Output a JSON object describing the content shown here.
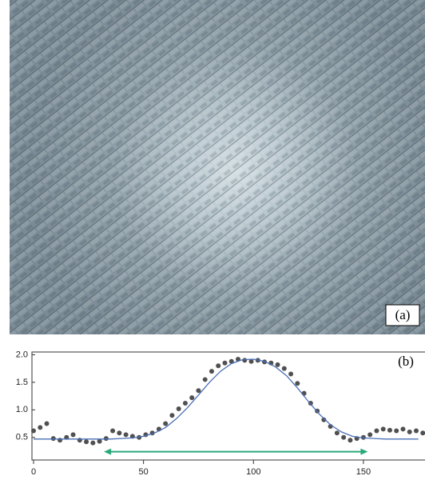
{
  "image_panel": {
    "label": "(a)"
  },
  "chart_data": {
    "type": "scatter",
    "panel_label": "(b)",
    "xlim": [
      0,
      178
    ],
    "ylim": [
      0.09,
      2.05
    ],
    "xticks": [
      0,
      50,
      100,
      150
    ],
    "yticks": [
      {
        "value": 2,
        "label": "2.0"
      },
      {
        "value": 1.5,
        "label": "1.5"
      },
      {
        "value": 1,
        "label": "1.0"
      },
      {
        "value": 0.5,
        "label": "0.5"
      }
    ],
    "series": [
      {
        "type": "scatter",
        "color": "#505050",
        "x": [
          0,
          3,
          6,
          9,
          12,
          15,
          18,
          21,
          24,
          27,
          30,
          33,
          36,
          39,
          42,
          45,
          48,
          51,
          54,
          57,
          60,
          63,
          66,
          69,
          72,
          75,
          78,
          81,
          84,
          87,
          90,
          93,
          96,
          99,
          102,
          105,
          108,
          111,
          114,
          117,
          120,
          123,
          126,
          129,
          132,
          135,
          138,
          141,
          144,
          147,
          150,
          153,
          156,
          159,
          162,
          165,
          168,
          171,
          174,
          177
        ],
        "values": [
          0.62,
          0.68,
          0.75,
          0.48,
          0.45,
          0.5,
          0.55,
          0.45,
          0.42,
          0.4,
          0.43,
          0.48,
          0.62,
          0.58,
          0.55,
          0.52,
          0.5,
          0.55,
          0.58,
          0.65,
          0.75,
          0.9,
          1.02,
          1.12,
          1.22,
          1.35,
          1.55,
          1.7,
          1.8,
          1.85,
          1.88,
          1.92,
          1.9,
          1.88,
          1.9,
          1.87,
          1.85,
          1.82,
          1.75,
          1.65,
          1.48,
          1.3,
          1.12,
          0.98,
          0.82,
          0.7,
          0.58,
          0.5,
          0.45,
          0.48,
          0.5,
          0.55,
          0.62,
          0.65,
          0.63,
          0.62,
          0.65,
          0.6,
          0.62,
          0.58
        ]
      },
      {
        "type": "line",
        "color": "#4a6fb5",
        "x": [
          0,
          5,
          10,
          15,
          20,
          25,
          30,
          35,
          40,
          45,
          50,
          55,
          60,
          65,
          70,
          75,
          80,
          85,
          90,
          95,
          100,
          105,
          110,
          115,
          120,
          125,
          130,
          135,
          140,
          145,
          150,
          155,
          160,
          165,
          170,
          175
        ],
        "values": [
          0.47,
          0.47,
          0.47,
          0.47,
          0.47,
          0.47,
          0.47,
          0.47,
          0.48,
          0.49,
          0.52,
          0.58,
          0.68,
          0.84,
          1.04,
          1.27,
          1.5,
          1.7,
          1.84,
          1.91,
          1.92,
          1.88,
          1.78,
          1.62,
          1.4,
          1.15,
          0.92,
          0.73,
          0.6,
          0.52,
          0.49,
          0.48,
          0.47,
          0.47,
          0.47,
          0.47
        ]
      }
    ],
    "arrow": {
      "x": [
        32,
        152
      ],
      "y": 0.24,
      "color": "#2aa87a"
    }
  }
}
